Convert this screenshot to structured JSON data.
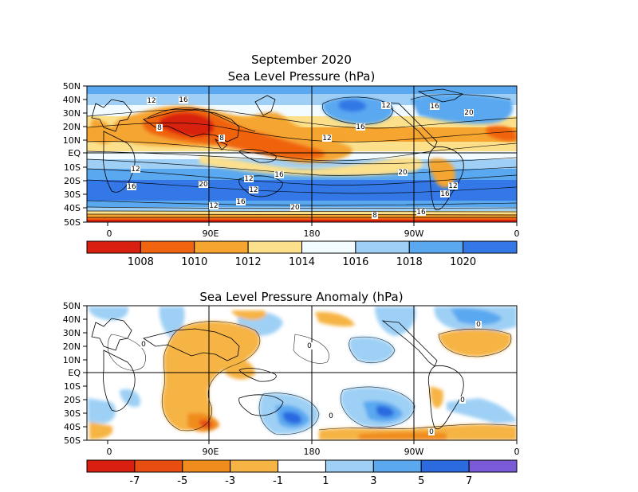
{
  "maps": [
    {
      "title_line1": "September 2020",
      "title_line2": "Sea Level Pressure (hPa)",
      "lat_labels": [
        "50N",
        "40N",
        "30N",
        "20N",
        "10N",
        "EQ",
        "10S",
        "20S",
        "30S",
        "40S",
        "50S"
      ],
      "lon_labels": [
        "0",
        "90E",
        "180",
        "90W",
        "0"
      ],
      "colorbar": {
        "colors": [
          "#d92010",
          "#f06410",
          "#f5a530",
          "#fce08c",
          "#f2fbff",
          "#a0cff5",
          "#5aa8f0",
          "#3378e6"
        ],
        "labels": [
          "1008",
          "1010",
          "1012",
          "1014",
          "1016",
          "1018",
          "1020"
        ]
      },
      "contour_labels": [
        "12",
        "16",
        "8",
        "8",
        "12",
        "16",
        "12",
        "20",
        "12",
        "12",
        "16",
        "20",
        "16",
        "12",
        "12",
        "16",
        "20",
        "12",
        "16",
        "20",
        "8",
        "16",
        "16"
      ]
    },
    {
      "title_line1": "Sea Level Pressure Anomaly (hPa)",
      "lat_labels": [
        "50N",
        "40N",
        "30N",
        "20N",
        "10N",
        "EQ",
        "10S",
        "20S",
        "30S",
        "40S",
        "50S"
      ],
      "lon_labels": [
        "0",
        "90E",
        "180",
        "90W",
        "0"
      ],
      "colorbar": {
        "colors": [
          "#d92010",
          "#e84e12",
          "#f08c1e",
          "#f6b444",
          "#ffffff",
          "#9ed0f5",
          "#5aa8f0",
          "#2c6ae0",
          "#7a5ad6"
        ],
        "labels": [
          "-7",
          "-5",
          "-3",
          "-1",
          "1",
          "3",
          "5",
          "7"
        ]
      },
      "contour_labels": [
        "0",
        "0",
        "0",
        "0",
        "0",
        "0"
      ]
    }
  ],
  "chart_data": [
    {
      "type": "heatmap",
      "title": "September 2020 Sea Level Pressure (hPa)",
      "x_axis": {
        "label": "",
        "ticks": [
          "0",
          "90E",
          "180",
          "90W",
          "0"
        ],
        "range": [
          0,
          360
        ]
      },
      "y_axis": {
        "label": "",
        "ticks": [
          "50N",
          "40N",
          "30N",
          "20N",
          "10N",
          "EQ",
          "10S",
          "20S",
          "30S",
          "40S",
          "50S"
        ],
        "range": [
          -50,
          50
        ]
      },
      "color_levels": [
        1008,
        1010,
        1012,
        1014,
        1016,
        1018,
        1020
      ],
      "contour_interval": 2
    },
    {
      "type": "heatmap",
      "title": "Sea Level Pressure Anomaly (hPa)",
      "x_axis": {
        "label": "",
        "ticks": [
          "0",
          "90E",
          "180",
          "90W",
          "0"
        ],
        "range": [
          0,
          360
        ]
      },
      "y_axis": {
        "label": "",
        "ticks": [
          "50N",
          "40N",
          "30N",
          "20N",
          "10N",
          "EQ",
          "10S",
          "20S",
          "30S",
          "40S",
          "50S"
        ],
        "range": [
          -50,
          50
        ]
      },
      "color_levels": [
        -7,
        -5,
        -3,
        -1,
        1,
        3,
        5,
        7
      ],
      "contour_interval": 1
    }
  ]
}
